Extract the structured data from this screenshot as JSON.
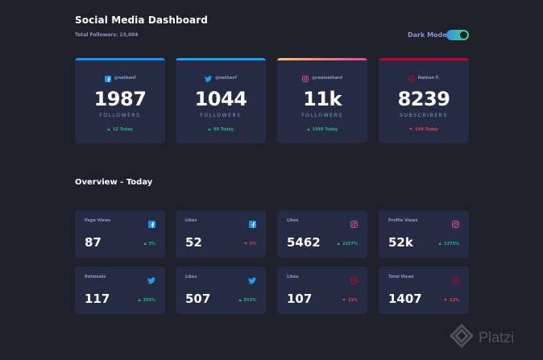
{
  "header": {
    "title": "Social Media Dashboard",
    "total_followers": "Total Followers: 23,004",
    "dark_mode_label": "Dark Mode",
    "dark_mode_on": true
  },
  "cards": [
    {
      "platform": "facebook",
      "icon": "facebook-icon",
      "accent": "#198ff5",
      "handle": "@nathanf",
      "value": "1987",
      "unit": "FOLLOWERS",
      "change": "12 Today",
      "trend": "up"
    },
    {
      "platform": "twitter",
      "icon": "twitter-icon",
      "accent": "#1ca0f2",
      "handle": "@nathanf",
      "value": "1044",
      "unit": "FOLLOWERS",
      "change": "99 Today",
      "trend": "up"
    },
    {
      "platform": "instagram",
      "icon": "instagram-icon",
      "accent": "#df4996",
      "handle": "@realnathanf",
      "value": "11k",
      "unit": "FOLLOWERS",
      "change": "1099 Today",
      "trend": "up"
    },
    {
      "platform": "youtube",
      "icon": "youtube-icon",
      "accent": "#c4032a",
      "handle": "Nathan F.",
      "value": "8239",
      "unit": "SUBSCRIBERS",
      "change": "144 Today",
      "trend": "down"
    }
  ],
  "overview": {
    "title": "Overview - Today",
    "items": [
      {
        "label": "Page Views",
        "icon": "facebook-icon",
        "value": "87",
        "pct": "3%",
        "trend": "up"
      },
      {
        "label": "Likes",
        "icon": "facebook-icon",
        "value": "52",
        "pct": "2%",
        "trend": "down"
      },
      {
        "label": "Likes",
        "icon": "instagram-icon",
        "value": "5462",
        "pct": "2257%",
        "trend": "up"
      },
      {
        "label": "Profile Views",
        "icon": "instagram-icon",
        "value": "52k",
        "pct": "1375%",
        "trend": "up"
      },
      {
        "label": "Retweets",
        "icon": "twitter-icon",
        "value": "117",
        "pct": "303%",
        "trend": "up"
      },
      {
        "label": "Likes",
        "icon": "twitter-icon",
        "value": "507",
        "pct": "553%",
        "trend": "up"
      },
      {
        "label": "Likes",
        "icon": "youtube-icon",
        "value": "107",
        "pct": "19%",
        "trend": "down"
      },
      {
        "label": "Total Views",
        "icon": "youtube-icon",
        "value": "1407",
        "pct": "12%",
        "trend": "down"
      }
    ]
  },
  "watermark": {
    "text": "Platzi"
  },
  "colors": {
    "background": "#1e202a",
    "card": "#252b43",
    "text_muted": "#8b97c6",
    "up": "#1db489",
    "down": "#dc414c"
  }
}
